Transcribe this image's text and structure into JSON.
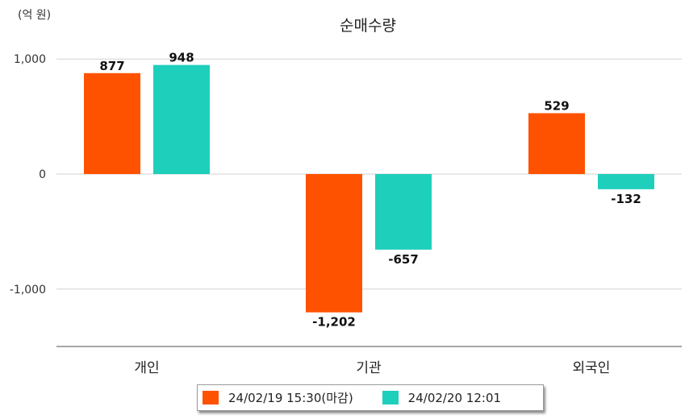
{
  "colors": {
    "series1": "#ff5200",
    "series2": "#1ecfbc",
    "grid": "#d2d2d2",
    "axis": "#8a8a8a"
  },
  "chart_data": {
    "type": "bar",
    "title": "순매수량",
    "unit_label": "(억 원)",
    "categories": [
      "개인",
      "기관",
      "외국인"
    ],
    "series": [
      {
        "name": "24/02/19 15:30(마감)",
        "values": [
          877,
          -1202,
          529
        ],
        "labels": [
          "877",
          "-1,202",
          "529"
        ]
      },
      {
        "name": "24/02/20 12:01",
        "values": [
          948,
          -657,
          -132
        ],
        "labels": [
          "948",
          "-657",
          "-132"
        ]
      }
    ],
    "yticks": [
      1000,
      0,
      -1000
    ],
    "ytick_labels": [
      "1,000",
      "0",
      "-1,000"
    ],
    "ylim": [
      -1500,
      1000
    ],
    "grid": true,
    "legend_position": "bottom"
  }
}
